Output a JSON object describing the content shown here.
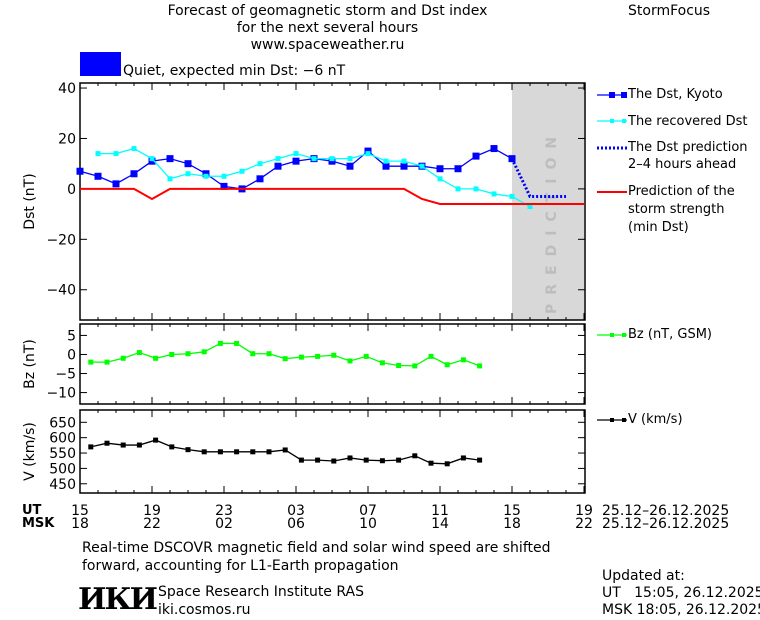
{
  "header": {
    "title_line1": "Forecast of geomagnetic storm and Dst index",
    "title_line2": "for the next several hours",
    "url": "www.spaceweather.ru",
    "brand": "StormFocus",
    "quiet_label": "Quiet, expected min Dst: −6 nT",
    "quiet_color": "#0000ff"
  },
  "legend": {
    "dst_kyoto": "The Dst, Kyoto",
    "dst_recovered": "The recovered Dst",
    "dst_prediction_1": "The Dst prediction",
    "dst_prediction_2": "2–4 hours ahead",
    "storm_1": "Prediction of the",
    "storm_2": "storm strength",
    "storm_3": "(min Dst)",
    "bz": "Bz (nT, GSM)",
    "v": "V (km/s)"
  },
  "axes": {
    "ut_label": "UT",
    "msk_label": "MSK",
    "ut_ticks": [
      "15",
      "19",
      "23",
      "03",
      "07",
      "11",
      "15",
      "19"
    ],
    "msk_ticks": [
      "18",
      "22",
      "02",
      "06",
      "10",
      "14",
      "18",
      "22"
    ],
    "date_range_ut": "25.12–26.12.2025",
    "date_range_msk": "25.12–26.12.2025",
    "prediction_text": "PREDICTION"
  },
  "chart_data": [
    {
      "type": "line",
      "ylabel": "Dst (nT)",
      "ylim": [
        -52,
        42
      ],
      "yticks": [
        40,
        20,
        0,
        -20,
        -40
      ],
      "xlim": [
        "25.12 15:00",
        "26.12 19:00"
      ],
      "prediction_zone": [
        "26.12 15:00",
        "26.12 19:00"
      ],
      "series": [
        {
          "name": "The Dst, Kyoto",
          "color": "#0000ff",
          "x_start": "25.12 15:00",
          "step_hours": 1,
          "values": [
            7,
            5,
            2,
            6,
            11,
            12,
            10,
            6,
            1,
            0,
            4,
            9,
            11,
            12,
            11,
            9,
            15,
            9,
            9,
            9,
            8,
            8,
            13,
            16,
            12
          ]
        },
        {
          "name": "The recovered Dst",
          "color": "#00ffff",
          "x_start": "25.12 16:00",
          "step_hours": 1,
          "values": [
            14,
            14,
            16,
            12,
            4,
            6,
            5,
            5,
            7,
            10,
            12,
            14,
            12,
            12,
            12,
            14,
            11,
            11,
            9,
            4,
            0,
            0,
            -2,
            -3,
            -7
          ]
        },
        {
          "name": "The Dst prediction 2–4 hours ahead",
          "color": "#0000ff",
          "style": "dotted",
          "x": [
            "26.12 15:00",
            "26.12 16:00",
            "26.12 18:00"
          ],
          "values": [
            12,
            -3,
            -3
          ]
        },
        {
          "name": "Prediction of the storm strength (min Dst)",
          "color": "#ff0000",
          "x": [
            "25.12 15:00",
            "25.12 18:00",
            "25.12 19:00",
            "25.12 20:00",
            "26.12 09:00",
            "26.12 10:00",
            "26.12 11:00",
            "26.12 19:00"
          ],
          "values": [
            0,
            0,
            -4,
            0,
            0,
            -4,
            -6,
            -6
          ]
        }
      ]
    },
    {
      "type": "line",
      "ylabel": "Bz (nT)",
      "ylim": [
        -13,
        8
      ],
      "yticks": [
        5,
        0,
        -5,
        -10
      ],
      "series": [
        {
          "name": "Bz (nT, GSM)",
          "color": "#00ff00",
          "x_start": "25.12 15:36",
          "step_minutes": 54,
          "values": [
            -2,
            -2,
            -1,
            0.5,
            -1,
            0,
            0.2,
            0.7,
            2.9,
            2.9,
            0.2,
            0.2,
            -1.1,
            -0.7,
            -0.5,
            -0.2,
            -1.7,
            -0.5,
            -2.2,
            -2.9,
            -3,
            -0.5,
            -2.7,
            -1.4,
            -3
          ]
        }
      ]
    },
    {
      "type": "line",
      "ylabel": "V (km/s)",
      "ylim": [
        420,
        690
      ],
      "yticks": [
        650,
        600,
        550,
        500,
        450
      ],
      "series": [
        {
          "name": "V (km/s)",
          "color": "#000000",
          "x_start": "25.12 15:36",
          "step_minutes": 54,
          "values": [
            570,
            582,
            576,
            576,
            592,
            570,
            561,
            554,
            554,
            554,
            554,
            554,
            560,
            527,
            527,
            524,
            534,
            527,
            525,
            527,
            541,
            517,
            515,
            534,
            527
          ]
        }
      ]
    }
  ],
  "footer": {
    "note_1": "Real-time DSCOVR magnetic field and solar wind speed are shifted",
    "note_2": "forward, accounting for L1-Earth propagation",
    "logo_text": "ИКИ",
    "institute": "Space Research Institute RAS",
    "site": "iki.cosmos.ru",
    "updated_label": "Updated at:",
    "updated_ut": "UT   15:05, 26.12.2025",
    "updated_msk": "MSK 18:05, 26.12.2025"
  }
}
